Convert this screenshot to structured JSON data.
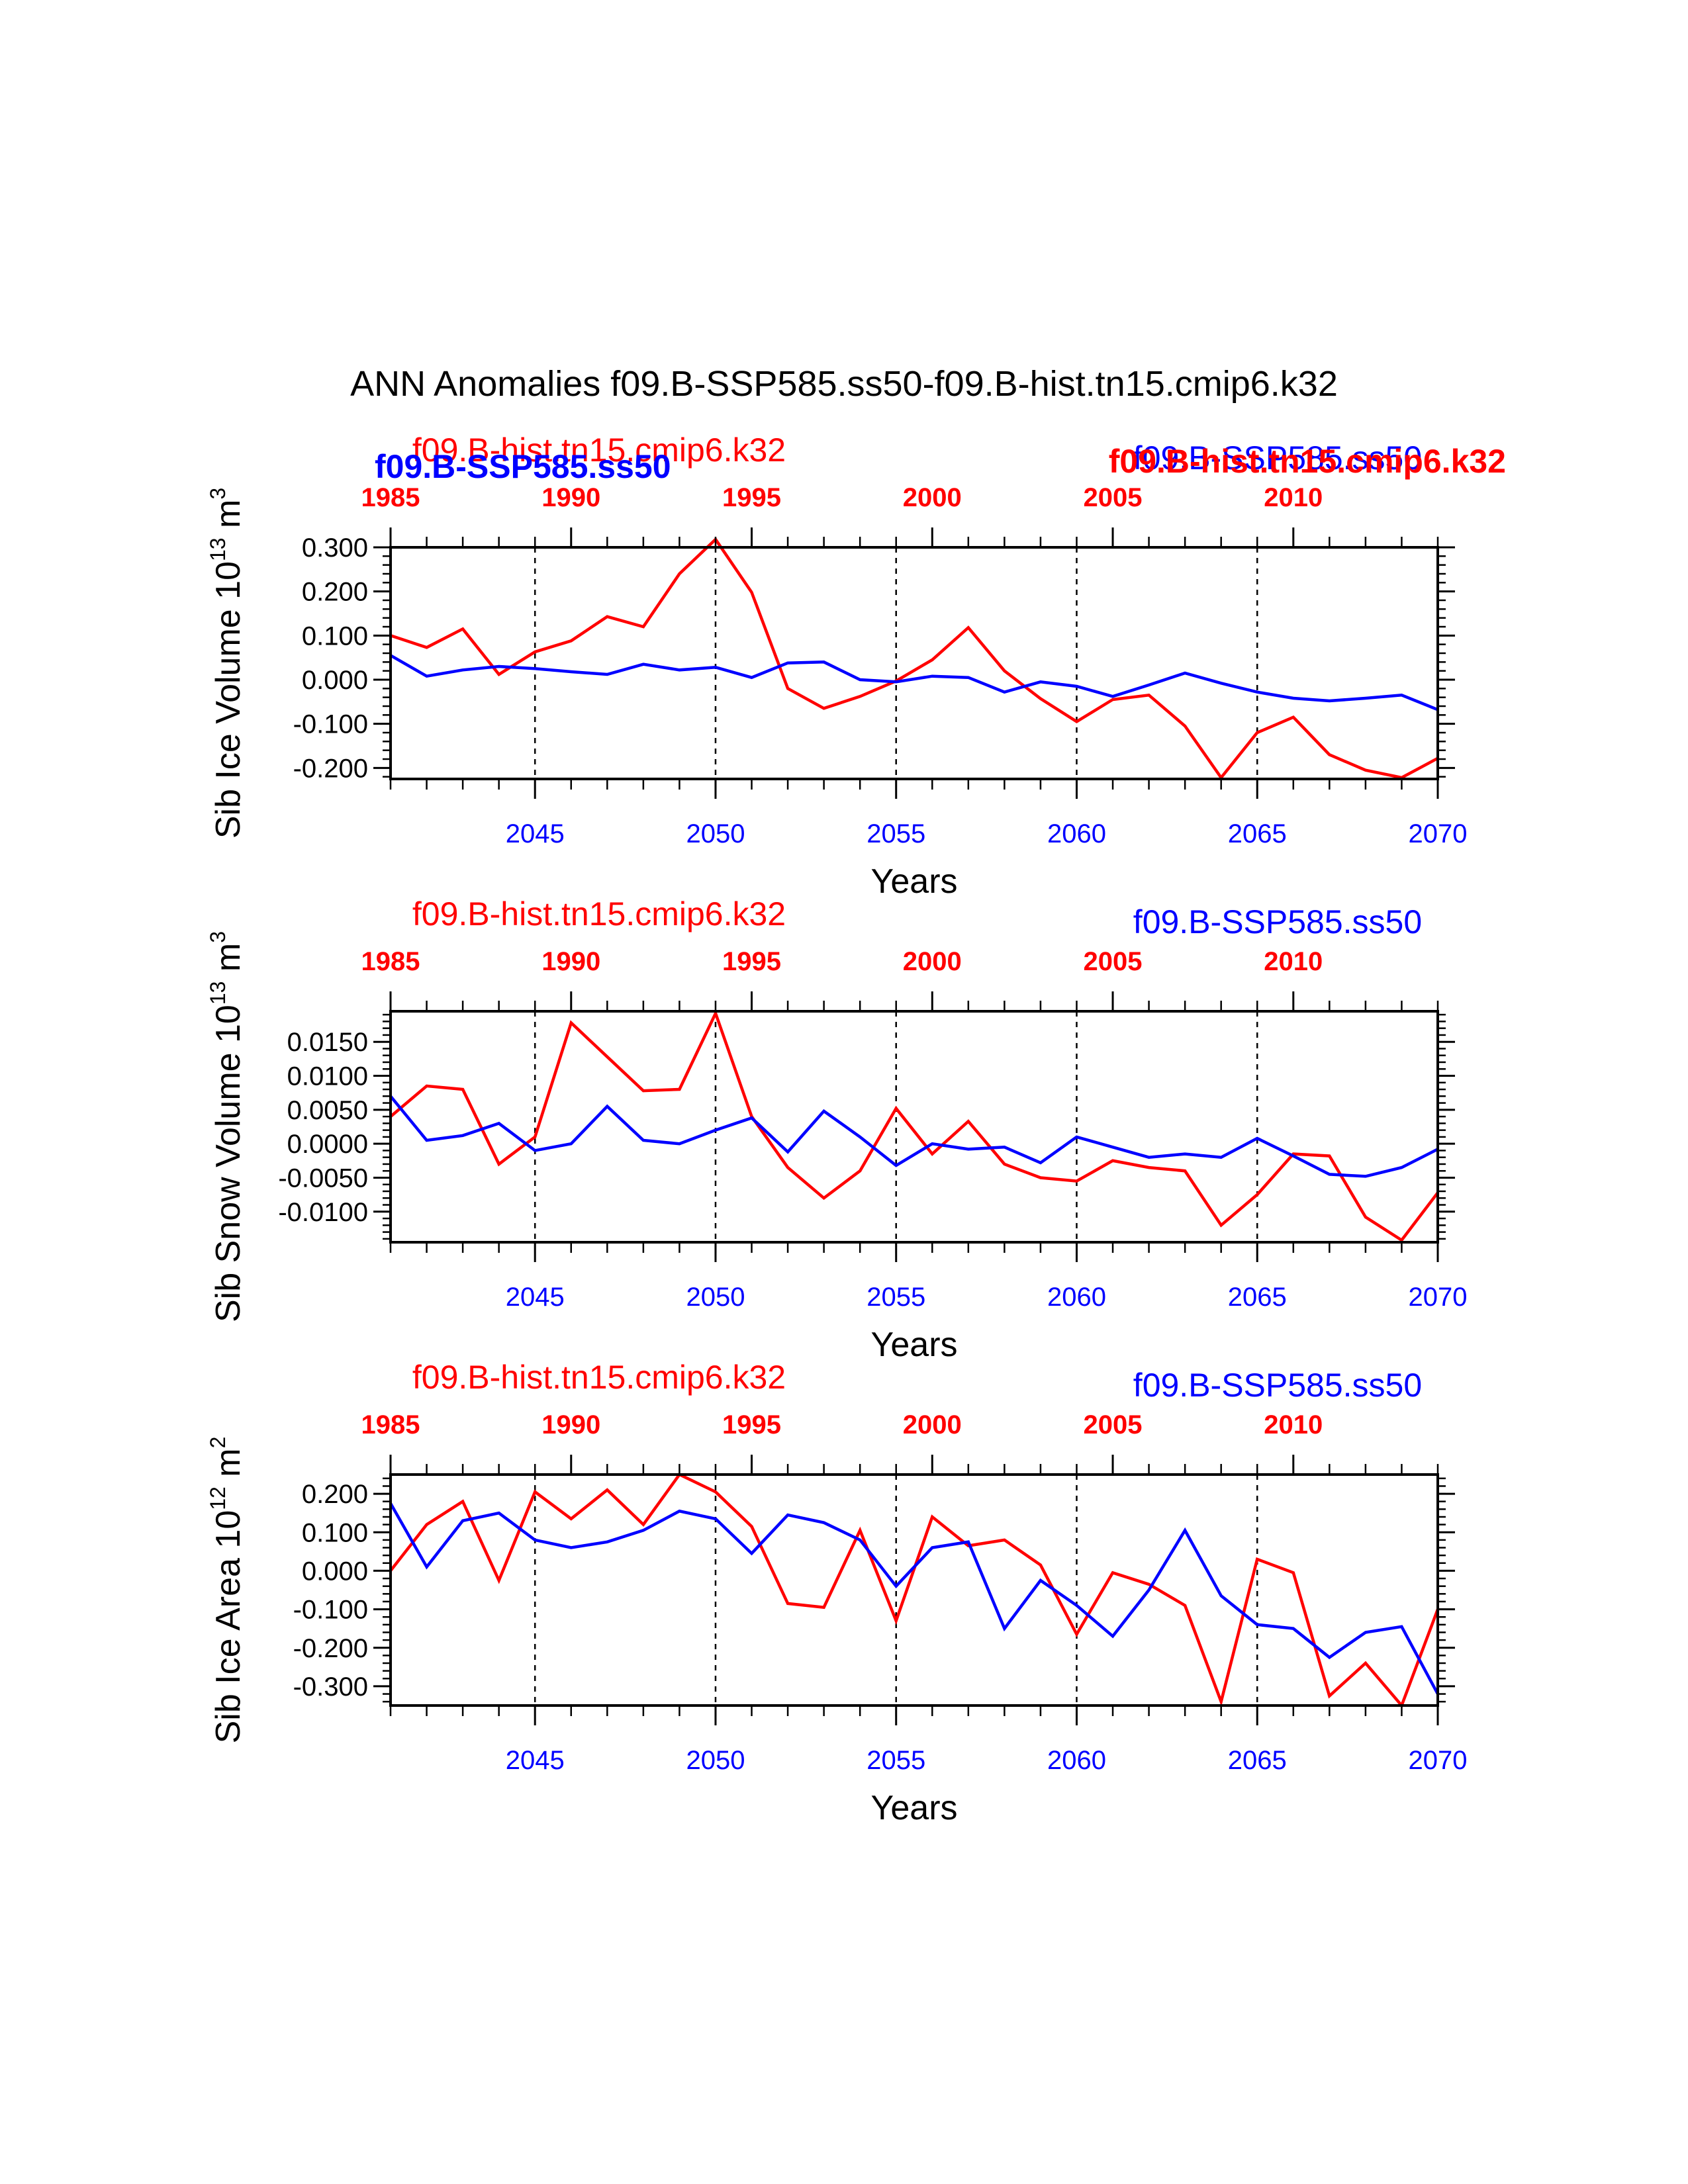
{
  "page_title": "ANN Anomalies f09.B-SSP585.ss50-f09.B-hist.tn15.cmip6.k32",
  "overlay_labels": {
    "hist_bold": "f09.B-hist.tn15.cmip6.k32",
    "ssp_bold": "f09.B-SSP585.ss50"
  },
  "colors": {
    "hist": "#ff0000",
    "ssp": "#0000ff",
    "axis": "#000000"
  },
  "chart_data": [
    {
      "type": "line",
      "ylabel_main": "Sib Ice Volume 10",
      "ylabel_exp": "13",
      "ylabel_unit": " m",
      "ylabel_unit_exp": "3",
      "xlabel": "Years",
      "top_label_hist": "f09.B-hist.tn15.cmip6.k32",
      "top_label_ssp": "f09.B-SSP585.ss50",
      "xlim": [
        2041,
        2070
      ],
      "ylim": [
        -0.225,
        0.3
      ],
      "yticks": [
        0.3,
        0.2,
        0.1,
        0.0,
        -0.1,
        -0.2
      ],
      "ytick_labels": [
        "0.300",
        "0.200",
        "0.100",
        "0.000",
        "-0.100",
        "-0.200"
      ],
      "yminor_step": 0.02,
      "bottom_ticks": [
        2045,
        2050,
        2055,
        2060,
        2065,
        2070
      ],
      "bottom_tick_labels": [
        "2045",
        "2050",
        "2055",
        "2060",
        "2065",
        "2070"
      ],
      "top_ticks": [
        1985,
        1990,
        1995,
        2000,
        2005,
        2010
      ],
      "top_tick_labels": [
        "1985",
        "1990",
        "1995",
        "2000",
        "2005",
        "2010"
      ],
      "top_offset": 56,
      "dashed_at": [
        2045,
        2050,
        2055,
        2060,
        2065
      ],
      "series": [
        {
          "name": "f09.B-hist.tn15.cmip6.k32",
          "color": "#ff0000",
          "x": [
            2041,
            2042,
            2043,
            2044,
            2045,
            2046,
            2047,
            2048,
            2049,
            2050,
            2051,
            2052,
            2053,
            2054,
            2055,
            2056,
            2057,
            2058,
            2059,
            2060,
            2061,
            2062,
            2063,
            2064,
            2065,
            2066,
            2067,
            2068,
            2069,
            2070
          ],
          "y": [
            0.1,
            0.073,
            0.115,
            0.012,
            0.063,
            0.088,
            0.143,
            0.12,
            0.24,
            0.318,
            0.198,
            -0.02,
            -0.065,
            -0.038,
            -0.003,
            0.045,
            0.118,
            0.02,
            -0.043,
            -0.095,
            -0.045,
            -0.035,
            -0.105,
            -0.222,
            -0.12,
            -0.085,
            -0.17,
            -0.205,
            -0.222,
            -0.178
          ]
        },
        {
          "name": "f09.B-SSP585.ss50",
          "color": "#0000ff",
          "x": [
            2041,
            2042,
            2043,
            2044,
            2045,
            2046,
            2047,
            2048,
            2049,
            2050,
            2051,
            2052,
            2053,
            2054,
            2055,
            2056,
            2057,
            2058,
            2059,
            2060,
            2061,
            2062,
            2063,
            2064,
            2065,
            2066,
            2067,
            2068,
            2069,
            2070
          ],
          "y": [
            0.055,
            0.008,
            0.022,
            0.03,
            0.025,
            0.018,
            0.012,
            0.035,
            0.022,
            0.028,
            0.005,
            0.038,
            0.04,
            0.0,
            -0.005,
            0.008,
            0.005,
            -0.028,
            -0.005,
            -0.015,
            -0.038,
            -0.012,
            0.015,
            -0.008,
            -0.028,
            -0.042,
            -0.048,
            -0.042,
            -0.035,
            -0.068
          ]
        }
      ]
    },
    {
      "type": "line",
      "ylabel_main": "Sib Snow Volume 10",
      "ylabel_exp": "13",
      "ylabel_unit": " m",
      "ylabel_unit_exp": "3",
      "xlabel": "Years",
      "top_label_hist": "f09.B-hist.tn15.cmip6.k32",
      "top_label_ssp": "f09.B-SSP585.ss50",
      "xlim": [
        2041,
        2070
      ],
      "ylim": [
        -0.0145,
        0.0195
      ],
      "yticks": [
        0.015,
        0.01,
        0.005,
        0.0,
        -0.005,
        -0.01
      ],
      "ytick_labels": [
        "0.0150",
        "0.0100",
        "0.0050",
        "0.0000",
        "-0.0050",
        "-0.0100"
      ],
      "yminor_step": 0.001,
      "bottom_ticks": [
        2045,
        2050,
        2055,
        2060,
        2065,
        2070
      ],
      "bottom_tick_labels": [
        "2045",
        "2050",
        "2055",
        "2060",
        "2065",
        "2070"
      ],
      "top_ticks": [
        1985,
        1990,
        1995,
        2000,
        2005,
        2010
      ],
      "top_tick_labels": [
        "1985",
        "1990",
        "1995",
        "2000",
        "2005",
        "2010"
      ],
      "top_offset": 56,
      "dashed_at": [
        2045,
        2050,
        2055,
        2060,
        2065
      ],
      "series": [
        {
          "name": "f09.B-hist.tn15.cmip6.k32",
          "color": "#ff0000",
          "x": [
            2041,
            2042,
            2043,
            2044,
            2045,
            2046,
            2047,
            2048,
            2049,
            2050,
            2051,
            2052,
            2053,
            2054,
            2055,
            2056,
            2057,
            2058,
            2059,
            2060,
            2061,
            2062,
            2063,
            2064,
            2065,
            2066,
            2067,
            2068,
            2069,
            2070
          ],
          "y": [
            0.004,
            0.0085,
            0.008,
            -0.003,
            0.001,
            0.0178,
            0.0128,
            0.0078,
            0.008,
            0.0192,
            0.004,
            -0.0035,
            -0.008,
            -0.004,
            0.0052,
            -0.0015,
            0.0033,
            -0.003,
            -0.005,
            -0.0055,
            -0.0025,
            -0.0035,
            -0.004,
            -0.012,
            -0.0075,
            -0.0015,
            -0.0018,
            -0.0108,
            -0.0142,
            -0.0072
          ]
        },
        {
          "name": "f09.B-SSP585.ss50",
          "color": "#0000ff",
          "x": [
            2041,
            2042,
            2043,
            2044,
            2045,
            2046,
            2047,
            2048,
            2049,
            2050,
            2051,
            2052,
            2053,
            2054,
            2055,
            2056,
            2057,
            2058,
            2059,
            2060,
            2061,
            2062,
            2063,
            2064,
            2065,
            2066,
            2067,
            2068,
            2069,
            2070
          ],
          "y": [
            0.007,
            0.0005,
            0.0012,
            0.003,
            -0.001,
            0.0,
            0.0055,
            0.0005,
            0.0,
            0.002,
            0.0038,
            -0.0012,
            0.0048,
            0.001,
            -0.0032,
            0.0,
            -0.0008,
            -0.0005,
            -0.0028,
            0.001,
            -0.0005,
            -0.002,
            -0.0015,
            -0.002,
            0.0008,
            -0.0018,
            -0.0045,
            -0.0048,
            -0.0035,
            -0.0008
          ]
        }
      ]
    },
    {
      "type": "line",
      "ylabel_main": "Sib Ice Area 10",
      "ylabel_exp": "12",
      "ylabel_unit": " m",
      "ylabel_unit_exp": "2",
      "xlabel": "Years",
      "top_label_hist": "f09.B-hist.tn15.cmip6.k32",
      "top_label_ssp": "f09.B-SSP585.ss50",
      "xlim": [
        2041,
        2070
      ],
      "ylim": [
        -0.35,
        0.25
      ],
      "yticks": [
        0.2,
        0.1,
        0.0,
        -0.1,
        -0.2,
        -0.3
      ],
      "ytick_labels": [
        "0.200",
        "0.100",
        "0.000",
        "-0.100",
        "-0.200",
        "-0.300"
      ],
      "yminor_step": 0.02,
      "bottom_ticks": [
        2045,
        2050,
        2055,
        2060,
        2065,
        2070
      ],
      "bottom_tick_labels": [
        "2045",
        "2050",
        "2055",
        "2060",
        "2065",
        "2070"
      ],
      "top_ticks": [
        1985,
        1990,
        1995,
        2000,
        2005,
        2010
      ],
      "top_tick_labels": [
        "1985",
        "1990",
        "1995",
        "2000",
        "2005",
        "2010"
      ],
      "top_offset": 56,
      "dashed_at": [
        2045,
        2050,
        2055,
        2060,
        2065
      ],
      "series": [
        {
          "name": "f09.B-hist.tn15.cmip6.k32",
          "color": "#ff0000",
          "x": [
            2041,
            2042,
            2043,
            2044,
            2045,
            2046,
            2047,
            2048,
            2049,
            2050,
            2051,
            2052,
            2053,
            2054,
            2055,
            2056,
            2057,
            2058,
            2059,
            2060,
            2061,
            2062,
            2063,
            2064,
            2065,
            2066,
            2067,
            2068,
            2069,
            2070
          ],
          "y": [
            0.0,
            0.12,
            0.18,
            -0.025,
            0.205,
            0.135,
            0.21,
            0.12,
            0.25,
            0.205,
            0.115,
            -0.085,
            -0.095,
            0.105,
            -0.13,
            0.14,
            0.065,
            0.08,
            0.015,
            -0.165,
            -0.005,
            -0.035,
            -0.09,
            -0.34,
            0.03,
            -0.005,
            -0.325,
            -0.24,
            -0.35,
            -0.1
          ]
        },
        {
          "name": "f09.B-SSP585.ss50",
          "color": "#0000ff",
          "x": [
            2041,
            2042,
            2043,
            2044,
            2045,
            2046,
            2047,
            2048,
            2049,
            2050,
            2051,
            2052,
            2053,
            2054,
            2055,
            2056,
            2057,
            2058,
            2059,
            2060,
            2061,
            2062,
            2063,
            2064,
            2065,
            2066,
            2067,
            2068,
            2069,
            2070
          ],
          "y": [
            0.175,
            0.01,
            0.13,
            0.15,
            0.08,
            0.06,
            0.075,
            0.105,
            0.155,
            0.135,
            0.045,
            0.145,
            0.125,
            0.08,
            -0.04,
            0.06,
            0.075,
            -0.15,
            -0.025,
            -0.09,
            -0.17,
            -0.05,
            0.105,
            -0.065,
            -0.14,
            -0.15,
            -0.225,
            -0.16,
            -0.145,
            -0.32
          ]
        }
      ]
    }
  ]
}
